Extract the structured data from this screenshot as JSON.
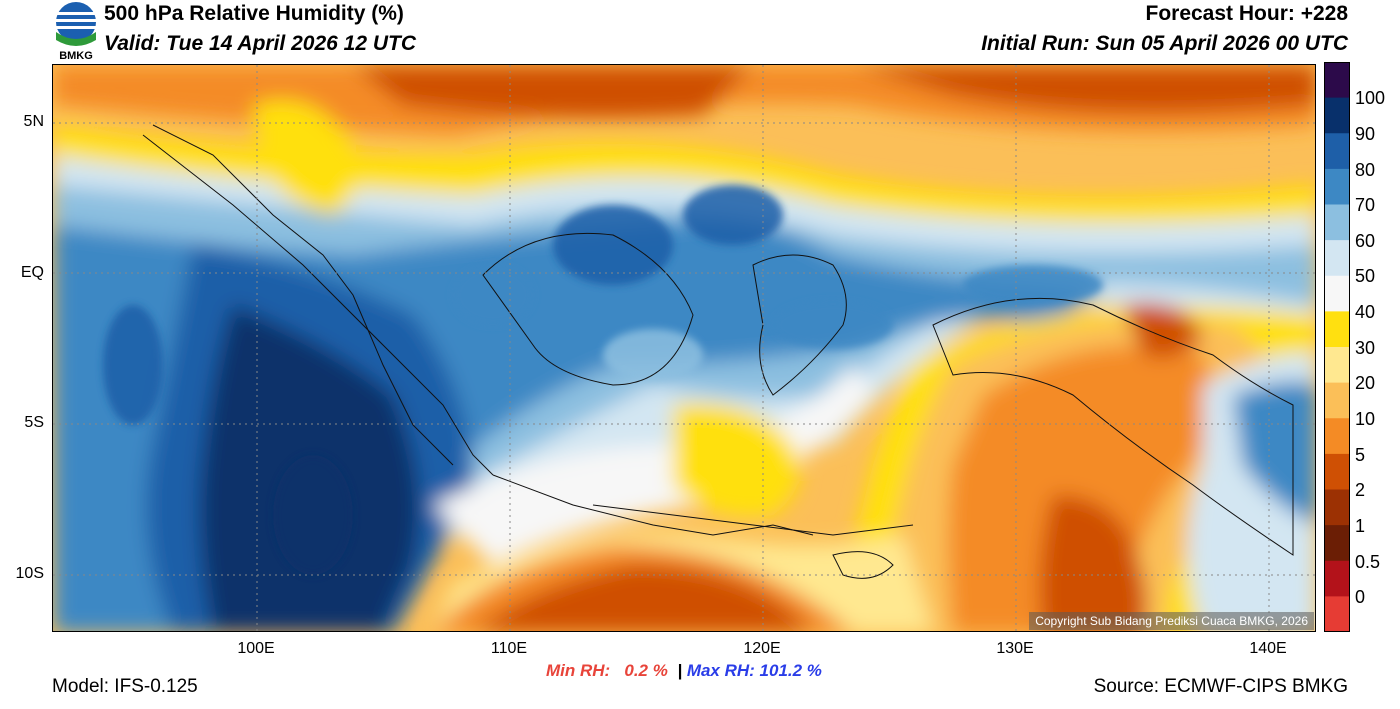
{
  "header": {
    "title": "500 hPa Relative Humidity (%)",
    "valid": "Valid: Tue 14 April 2026 12 UTC",
    "forecast_hour": "Forecast Hour: +228",
    "initial_run": "Initial Run: Sun 05 April 2026 00 UTC",
    "logo_text": "BMKG"
  },
  "map": {
    "lat_labels": [
      "5N",
      "EQ",
      "5S",
      "10S"
    ],
    "lon_labels": [
      "100E",
      "110E",
      "120E",
      "130E",
      "140E"
    ],
    "lat_range": [
      -12,
      7
    ],
    "lon_range": [
      92,
      142
    ],
    "copyright": "Copyright Sub Bidang Prediksi Cuaca BMKG, 2026"
  },
  "colorbar": {
    "labels": [
      "100",
      "90",
      "80",
      "70",
      "60",
      "50",
      "40",
      "30",
      "20",
      "10",
      "5",
      "2",
      "1",
      "0.5",
      "0"
    ],
    "colors": [
      "#2c0a4a",
      "#08306b",
      "#1e5fa8",
      "#3d88c4",
      "#8cbfe0",
      "#d3e6f2",
      "#f7f7f7",
      "#ffe010",
      "#ffe890",
      "#fbbf58",
      "#f48b25",
      "#cf5004",
      "#9c3103",
      "#6b1e05",
      "#b3121a",
      "#e63c34"
    ]
  },
  "footer": {
    "min_rh": "Min RH:   0.2 %",
    "separator": "|",
    "max_rh": "Max RH: 101.2 %",
    "model": "Model: IFS-0.125",
    "source": "Source: ECMWF-CIPS BMKG"
  }
}
